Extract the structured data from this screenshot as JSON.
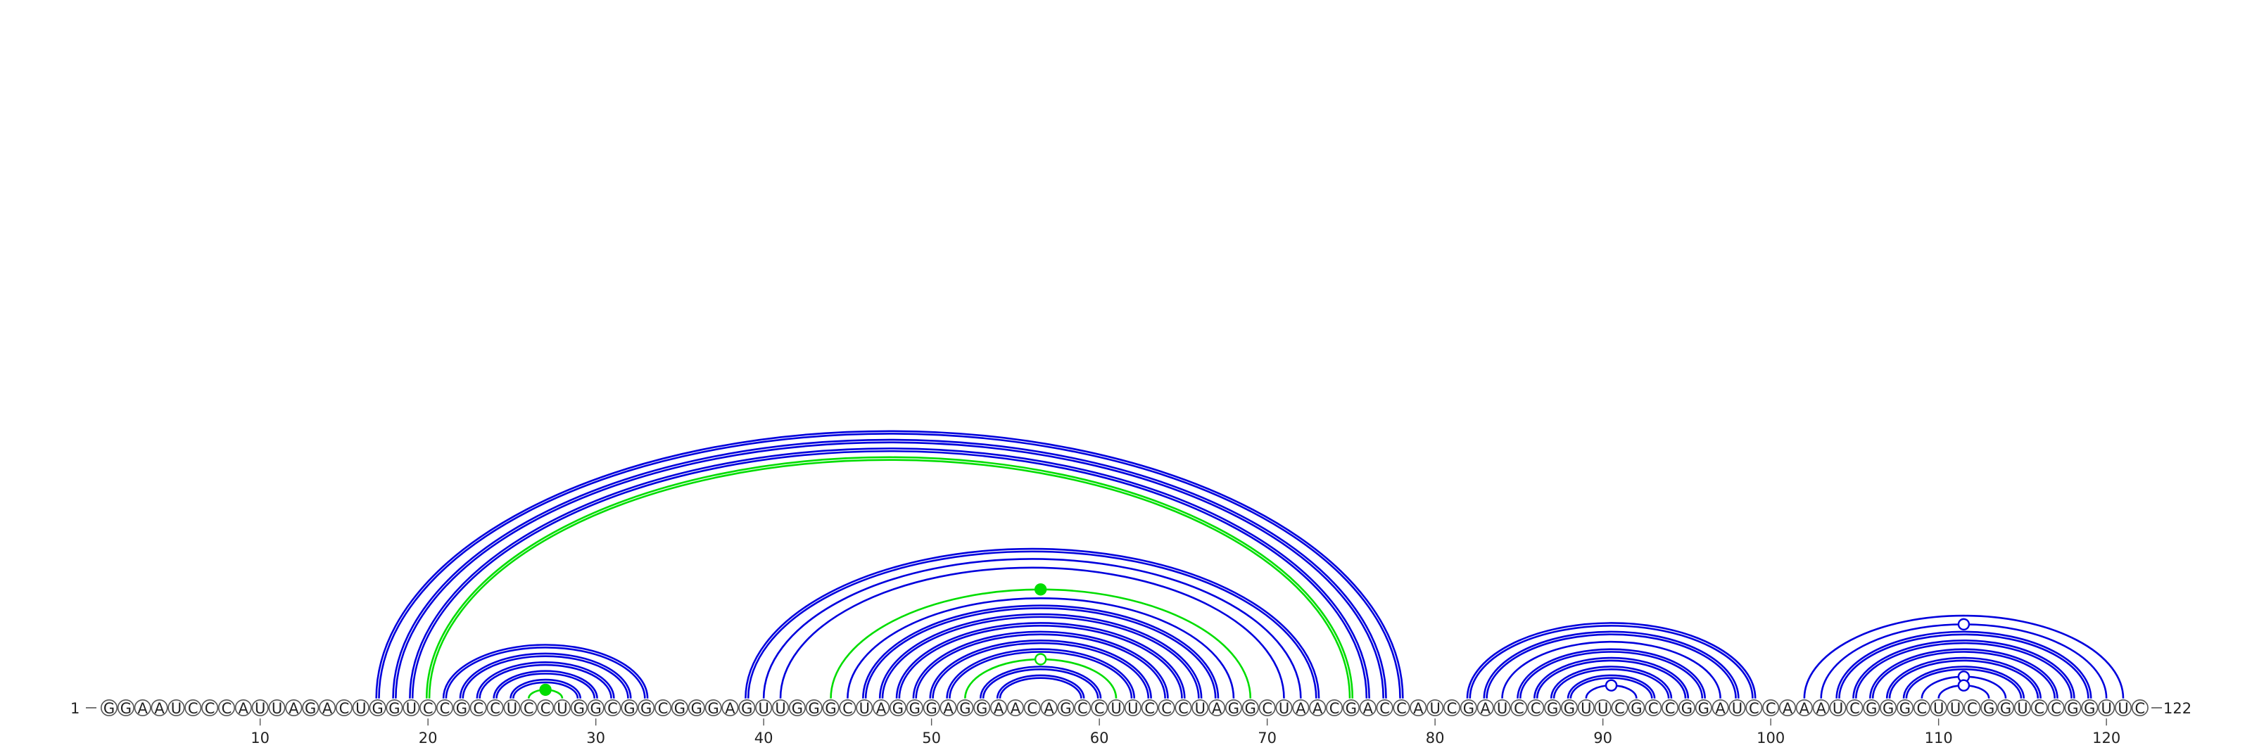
{
  "sequence": "GGAAUCCCAUUAGACUGGUCCGCCUCCUGGCGGCGGGAGUUGGGCUAGGGAGGAACAGCCUUCCCUAGGCUAACGACCAUCGAUCCGGUUCGCCGGAUCCAAAUCGGGCUUCGGUCCGGUUC",
  "length": 122,
  "start_label": "1",
  "end_label": "122",
  "ticks": [
    10,
    20,
    30,
    40,
    50,
    60,
    70,
    80,
    90,
    100,
    110,
    120
  ],
  "colors": {
    "blue": "#0000dd",
    "green": "#00dd00"
  },
  "arcs": [
    {
      "i": 17,
      "j": 78,
      "color": "blue",
      "double": true
    },
    {
      "i": 18,
      "j": 77,
      "color": "blue",
      "double": true
    },
    {
      "i": 19,
      "j": 76,
      "color": "blue",
      "double": true
    },
    {
      "i": 20,
      "j": 75,
      "color": "green",
      "double": true
    },
    {
      "i": 21,
      "j": 33,
      "color": "blue",
      "double": true
    },
    {
      "i": 22,
      "j": 32,
      "color": "blue",
      "double": true
    },
    {
      "i": 23,
      "j": 31,
      "color": "blue",
      "double": true
    },
    {
      "i": 24,
      "j": 30,
      "color": "blue",
      "double": true
    },
    {
      "i": 25,
      "j": 29,
      "color": "blue",
      "double": true
    },
    {
      "i": 26,
      "j": 28,
      "color": "green",
      "double": false,
      "marker": "filled"
    },
    {
      "i": 39,
      "j": 73,
      "color": "blue",
      "double": true
    },
    {
      "i": 40,
      "j": 72,
      "color": "blue",
      "double": false
    },
    {
      "i": 41,
      "j": 71,
      "color": "blue",
      "double": false
    },
    {
      "i": 44,
      "j": 69,
      "color": "green",
      "double": false,
      "marker": "filled"
    },
    {
      "i": 45,
      "j": 68,
      "color": "blue",
      "double": false
    },
    {
      "i": 46,
      "j": 67,
      "color": "blue",
      "double": true
    },
    {
      "i": 47,
      "j": 66,
      "color": "blue",
      "double": true
    },
    {
      "i": 48,
      "j": 65,
      "color": "blue",
      "double": true
    },
    {
      "i": 49,
      "j": 64,
      "color": "blue",
      "double": true
    },
    {
      "i": 50,
      "j": 63,
      "color": "blue",
      "double": true
    },
    {
      "i": 51,
      "j": 62,
      "color": "blue",
      "double": true
    },
    {
      "i": 52,
      "j": 61,
      "color": "green",
      "double": false,
      "marker": "open"
    },
    {
      "i": 53,
      "j": 60,
      "color": "blue",
      "double": true
    },
    {
      "i": 54,
      "j": 59,
      "color": "blue",
      "double": true
    },
    {
      "i": 82,
      "j": 99,
      "color": "blue",
      "double": true
    },
    {
      "i": 83,
      "j": 98,
      "color": "blue",
      "double": true
    },
    {
      "i": 84,
      "j": 97,
      "color": "blue",
      "double": false
    },
    {
      "i": 85,
      "j": 96,
      "color": "blue",
      "double": true
    },
    {
      "i": 86,
      "j": 95,
      "color": "blue",
      "double": true
    },
    {
      "i": 87,
      "j": 94,
      "color": "blue",
      "double": true
    },
    {
      "i": 88,
      "j": 93,
      "color": "blue",
      "double": true
    },
    {
      "i": 89,
      "j": 92,
      "color": "blue",
      "double": false,
      "marker": "open"
    },
    {
      "i": 102,
      "j": 121,
      "color": "blue",
      "double": false
    },
    {
      "i": 103,
      "j": 120,
      "color": "blue",
      "double": false,
      "marker": "open"
    },
    {
      "i": 104,
      "j": 119,
      "color": "blue",
      "double": true
    },
    {
      "i": 105,
      "j": 118,
      "color": "blue",
      "double": true
    },
    {
      "i": 106,
      "j": 117,
      "color": "blue",
      "double": true
    },
    {
      "i": 107,
      "j": 116,
      "color": "blue",
      "double": true
    },
    {
      "i": 108,
      "j": 115,
      "color": "blue",
      "double": true
    },
    {
      "i": 109,
      "j": 114,
      "color": "blue",
      "double": false,
      "marker": "open"
    },
    {
      "i": 110,
      "j": 113,
      "color": "blue",
      "double": false,
      "marker": "open"
    }
  ]
}
